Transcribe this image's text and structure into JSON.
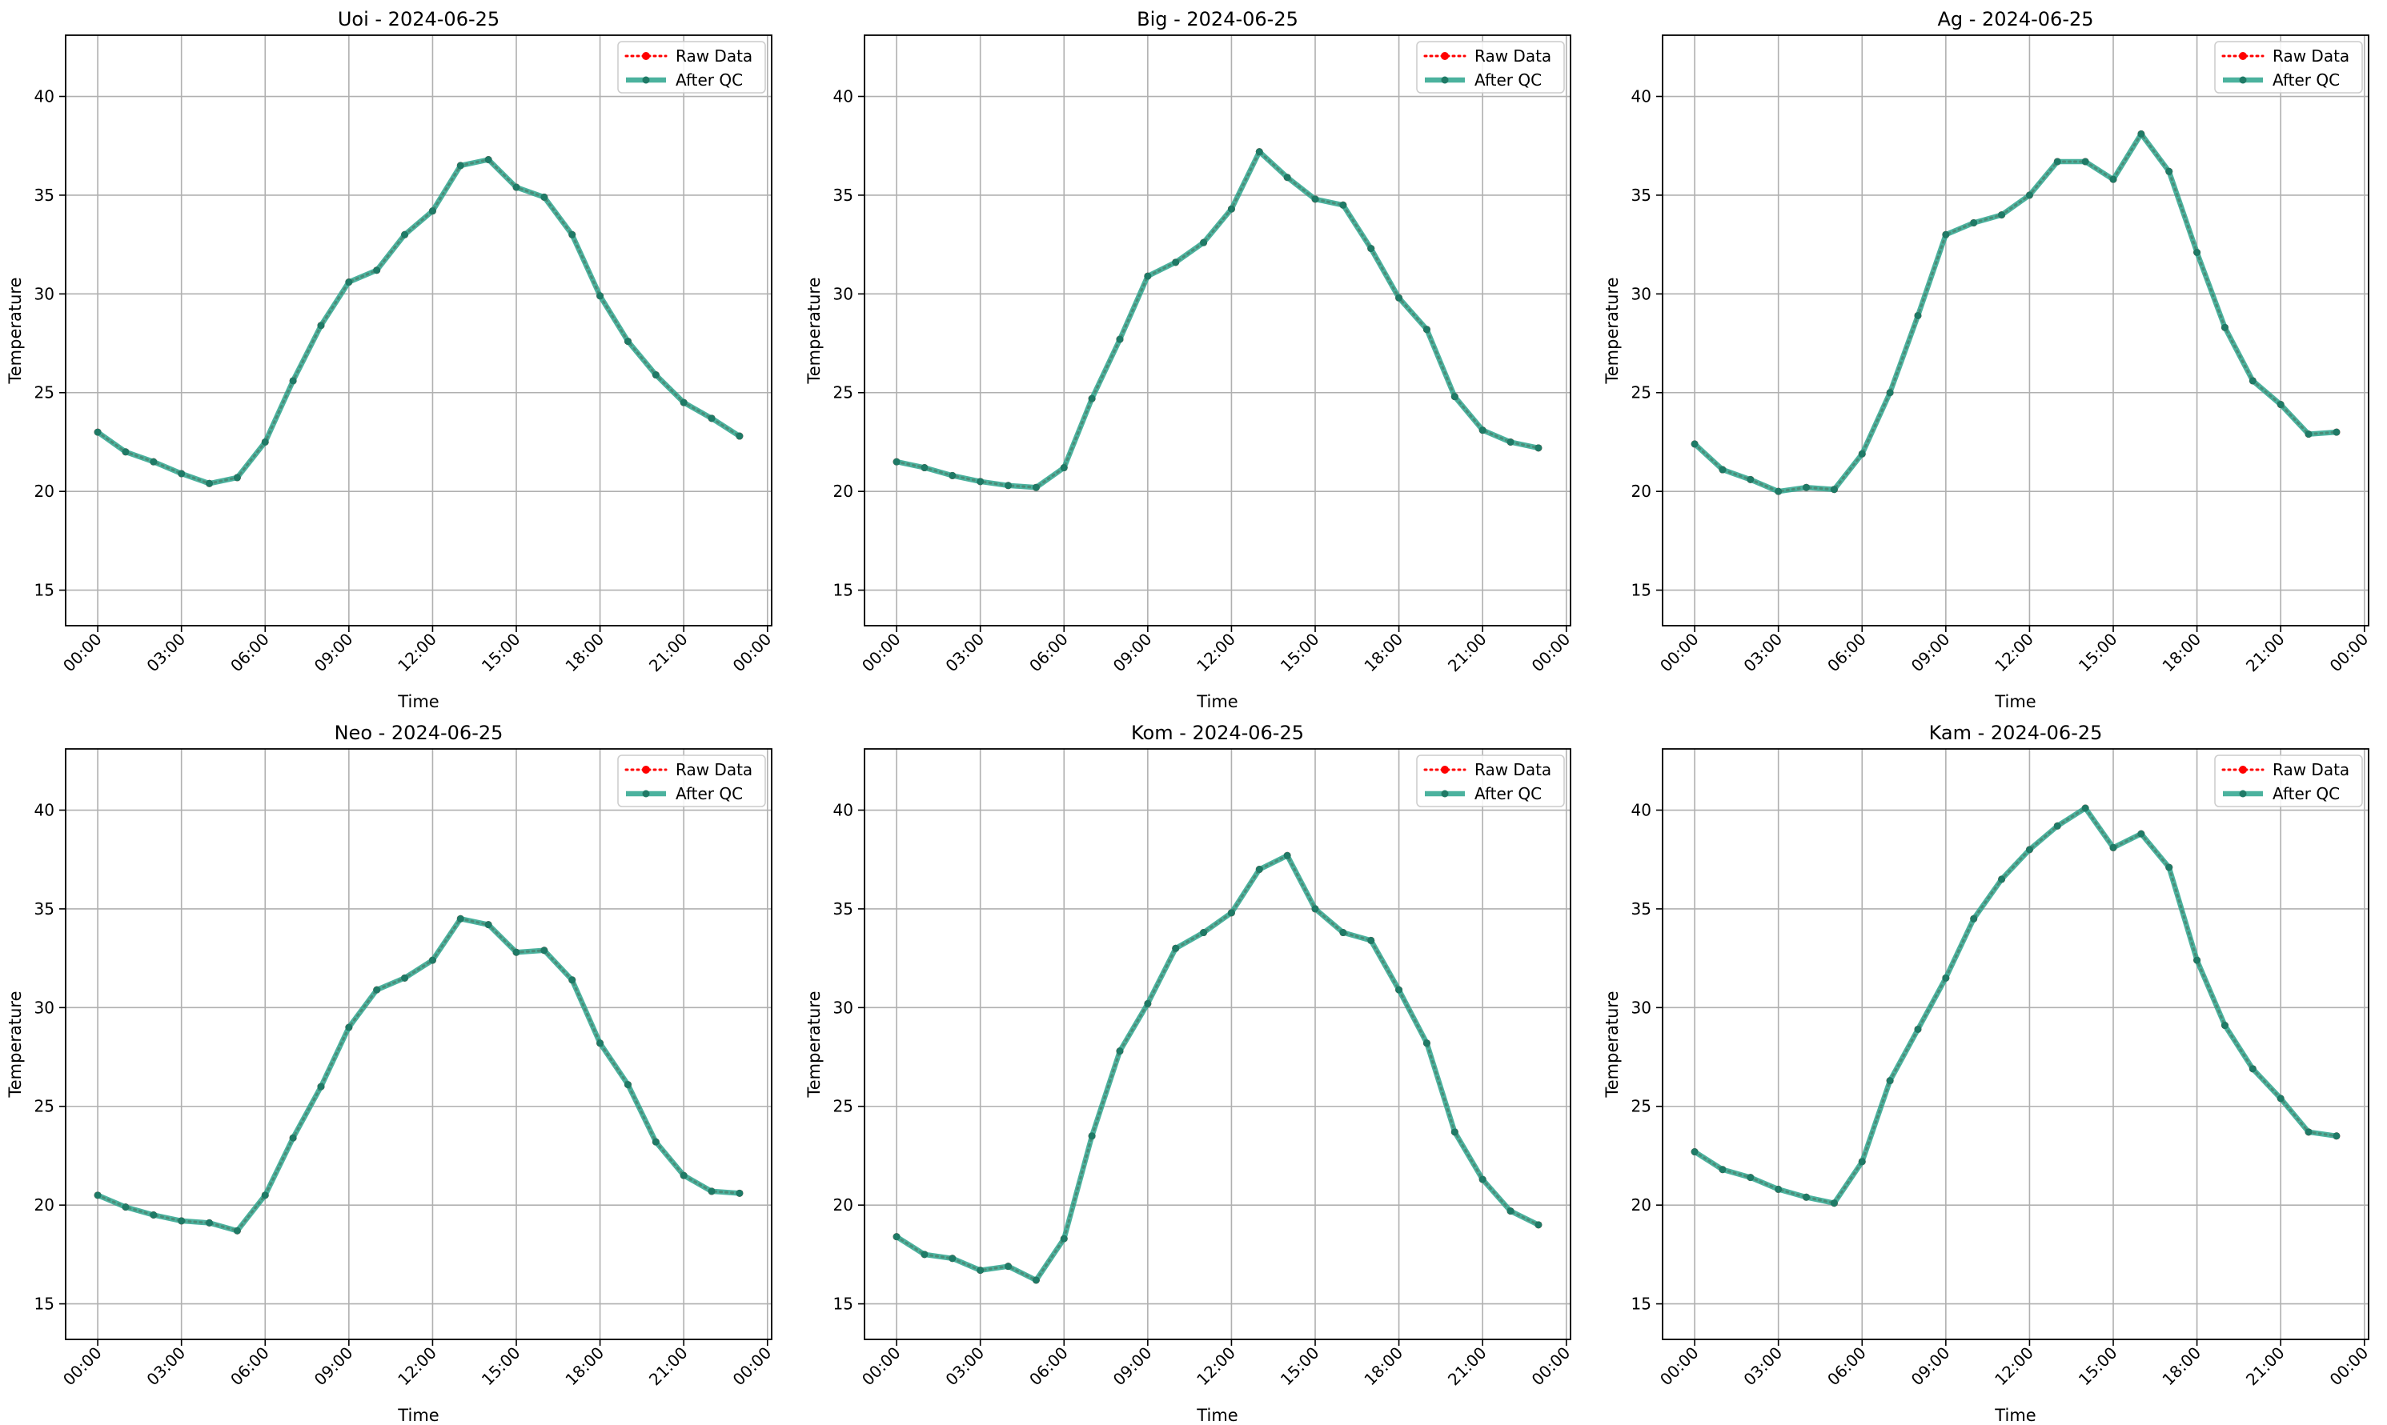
{
  "figure": {
    "colors": {
      "raw": "#ff0000",
      "qc": "#2ca58d",
      "qc_marker": "#1f7a66",
      "grid": "#b0b0b0",
      "axis": "#000000"
    }
  },
  "chart_data": [
    {
      "type": "line",
      "title": "Uoi - 2024-06-25",
      "xlabel": "Time",
      "ylabel": "Temperature",
      "x": [
        "00:00",
        "01:00",
        "02:00",
        "03:00",
        "04:00",
        "05:00",
        "06:00",
        "07:00",
        "08:00",
        "09:00",
        "10:00",
        "11:00",
        "12:00",
        "13:00",
        "14:00",
        "15:00",
        "16:00",
        "17:00",
        "18:00",
        "19:00",
        "20:00",
        "21:00",
        "22:00",
        "23:00"
      ],
      "xticks": [
        "00:00",
        "03:00",
        "06:00",
        "09:00",
        "12:00",
        "15:00",
        "18:00",
        "21:00",
        "00:00"
      ],
      "yticks": [
        15,
        20,
        25,
        30,
        35,
        40
      ],
      "ylim": [
        13.2,
        43.1
      ],
      "grid": true,
      "legend_position": "upper right",
      "series": [
        {
          "name": "Raw Data",
          "style": "dotted",
          "values": [
            23.0,
            22.0,
            21.5,
            20.9,
            20.4,
            20.7,
            22.5,
            25.6,
            28.4,
            30.6,
            31.2,
            33.0,
            34.2,
            36.5,
            36.8,
            35.4,
            34.9,
            33.0,
            29.9,
            27.6,
            25.9,
            24.5,
            23.7,
            22.8
          ]
        },
        {
          "name": "After QC",
          "style": "solid",
          "values": [
            23.0,
            22.0,
            21.5,
            20.9,
            20.4,
            20.7,
            22.5,
            25.6,
            28.4,
            30.6,
            31.2,
            33.0,
            34.2,
            36.5,
            36.8,
            35.4,
            34.9,
            33.0,
            29.9,
            27.6,
            25.9,
            24.5,
            23.7,
            22.8
          ]
        }
      ]
    },
    {
      "type": "line",
      "title": "Big - 2024-06-25",
      "xlabel": "Time",
      "ylabel": "Temperature",
      "x": [
        "00:00",
        "01:00",
        "02:00",
        "03:00",
        "04:00",
        "05:00",
        "06:00",
        "07:00",
        "08:00",
        "09:00",
        "10:00",
        "11:00",
        "12:00",
        "13:00",
        "14:00",
        "15:00",
        "16:00",
        "17:00",
        "18:00",
        "19:00",
        "20:00",
        "21:00",
        "22:00",
        "23:00"
      ],
      "xticks": [
        "00:00",
        "03:00",
        "06:00",
        "09:00",
        "12:00",
        "15:00",
        "18:00",
        "21:00",
        "00:00"
      ],
      "yticks": [
        15,
        20,
        25,
        30,
        35,
        40
      ],
      "ylim": [
        13.2,
        43.1
      ],
      "grid": true,
      "legend_position": "upper right",
      "series": [
        {
          "name": "Raw Data",
          "style": "dotted",
          "values": [
            21.5,
            21.2,
            20.8,
            20.5,
            20.3,
            20.2,
            21.2,
            24.7,
            27.7,
            30.9,
            31.6,
            32.6,
            34.3,
            37.2,
            35.9,
            34.8,
            34.5,
            32.3,
            29.8,
            28.2,
            24.8,
            23.1,
            22.5,
            22.2
          ]
        },
        {
          "name": "After QC",
          "style": "solid",
          "values": [
            21.5,
            21.2,
            20.8,
            20.5,
            20.3,
            20.2,
            21.2,
            24.7,
            27.7,
            30.9,
            31.6,
            32.6,
            34.3,
            37.2,
            35.9,
            34.8,
            34.5,
            32.3,
            29.8,
            28.2,
            24.8,
            23.1,
            22.5,
            22.2
          ]
        }
      ]
    },
    {
      "type": "line",
      "title": "Ag - 2024-06-25",
      "xlabel": "Time",
      "ylabel": "Temperature",
      "x": [
        "00:00",
        "01:00",
        "02:00",
        "03:00",
        "04:00",
        "05:00",
        "06:00",
        "07:00",
        "08:00",
        "09:00",
        "10:00",
        "11:00",
        "12:00",
        "13:00",
        "14:00",
        "15:00",
        "16:00",
        "17:00",
        "18:00",
        "19:00",
        "20:00",
        "21:00",
        "22:00",
        "23:00"
      ],
      "xticks": [
        "00:00",
        "03:00",
        "06:00",
        "09:00",
        "12:00",
        "15:00",
        "18:00",
        "21:00",
        "00:00"
      ],
      "yticks": [
        15,
        20,
        25,
        30,
        35,
        40
      ],
      "ylim": [
        13.2,
        43.1
      ],
      "grid": true,
      "legend_position": "upper right",
      "series": [
        {
          "name": "Raw Data",
          "style": "dotted",
          "values": [
            22.4,
            21.1,
            20.6,
            20.0,
            20.2,
            20.1,
            21.9,
            25.0,
            28.9,
            33.0,
            33.6,
            34.0,
            35.0,
            36.7,
            36.7,
            35.8,
            38.1,
            36.2,
            32.1,
            28.3,
            25.6,
            24.4,
            22.9,
            23.0
          ]
        },
        {
          "name": "After QC",
          "style": "solid",
          "values": [
            22.4,
            21.1,
            20.6,
            20.0,
            20.2,
            20.1,
            21.9,
            25.0,
            28.9,
            33.0,
            33.6,
            34.0,
            35.0,
            36.7,
            36.7,
            35.8,
            38.1,
            36.2,
            32.1,
            28.3,
            25.6,
            24.4,
            22.9,
            23.0
          ]
        }
      ]
    },
    {
      "type": "line",
      "title": "Neo - 2024-06-25",
      "xlabel": "Time",
      "ylabel": "Temperature",
      "x": [
        "00:00",
        "01:00",
        "02:00",
        "03:00",
        "04:00",
        "05:00",
        "06:00",
        "07:00",
        "08:00",
        "09:00",
        "10:00",
        "11:00",
        "12:00",
        "13:00",
        "14:00",
        "15:00",
        "16:00",
        "17:00",
        "18:00",
        "19:00",
        "20:00",
        "21:00",
        "22:00",
        "23:00"
      ],
      "xticks": [
        "00:00",
        "03:00",
        "06:00",
        "09:00",
        "12:00",
        "15:00",
        "18:00",
        "21:00",
        "00:00"
      ],
      "yticks": [
        15,
        20,
        25,
        30,
        35,
        40
      ],
      "ylim": [
        13.2,
        43.1
      ],
      "grid": true,
      "legend_position": "upper right",
      "series": [
        {
          "name": "Raw Data",
          "style": "dotted",
          "values": [
            20.5,
            19.9,
            19.5,
            19.2,
            19.1,
            18.7,
            20.5,
            23.4,
            26.0,
            29.0,
            30.9,
            31.5,
            32.4,
            34.5,
            34.2,
            32.8,
            32.9,
            31.4,
            28.2,
            26.1,
            23.2,
            21.5,
            20.7,
            20.6
          ]
        },
        {
          "name": "After QC",
          "style": "solid",
          "values": [
            20.5,
            19.9,
            19.5,
            19.2,
            19.1,
            18.7,
            20.5,
            23.4,
            26.0,
            29.0,
            30.9,
            31.5,
            32.4,
            34.5,
            34.2,
            32.8,
            32.9,
            31.4,
            28.2,
            26.1,
            23.2,
            21.5,
            20.7,
            20.6
          ]
        }
      ]
    },
    {
      "type": "line",
      "title": "Kom - 2024-06-25",
      "xlabel": "Time",
      "ylabel": "Temperature",
      "x": [
        "00:00",
        "01:00",
        "02:00",
        "03:00",
        "04:00",
        "05:00",
        "06:00",
        "07:00",
        "08:00",
        "09:00",
        "10:00",
        "11:00",
        "12:00",
        "13:00",
        "14:00",
        "15:00",
        "16:00",
        "17:00",
        "18:00",
        "19:00",
        "20:00",
        "21:00",
        "22:00",
        "23:00"
      ],
      "xticks": [
        "00:00",
        "03:00",
        "06:00",
        "09:00",
        "12:00",
        "15:00",
        "18:00",
        "21:00",
        "00:00"
      ],
      "yticks": [
        15,
        20,
        25,
        30,
        35,
        40
      ],
      "ylim": [
        13.2,
        43.1
      ],
      "grid": true,
      "legend_position": "upper right",
      "series": [
        {
          "name": "Raw Data",
          "style": "dotted",
          "values": [
            18.4,
            17.5,
            17.3,
            16.7,
            16.9,
            16.2,
            18.3,
            23.5,
            27.8,
            30.2,
            33.0,
            33.8,
            34.8,
            37.0,
            37.7,
            35.0,
            33.8,
            33.4,
            30.9,
            28.2,
            23.7,
            21.3,
            19.7,
            19.0
          ]
        },
        {
          "name": "After QC",
          "style": "solid",
          "values": [
            18.4,
            17.5,
            17.3,
            16.7,
            16.9,
            16.2,
            18.3,
            23.5,
            27.8,
            30.2,
            33.0,
            33.8,
            34.8,
            37.0,
            37.7,
            35.0,
            33.8,
            33.4,
            30.9,
            28.2,
            23.7,
            21.3,
            19.7,
            19.0
          ]
        }
      ]
    },
    {
      "type": "line",
      "title": "Kam - 2024-06-25",
      "xlabel": "Time",
      "ylabel": "Temperature",
      "x": [
        "00:00",
        "01:00",
        "02:00",
        "03:00",
        "04:00",
        "05:00",
        "06:00",
        "07:00",
        "08:00",
        "09:00",
        "10:00",
        "11:00",
        "12:00",
        "13:00",
        "14:00",
        "15:00",
        "16:00",
        "17:00",
        "18:00",
        "19:00",
        "20:00",
        "21:00",
        "22:00",
        "23:00"
      ],
      "xticks": [
        "00:00",
        "03:00",
        "06:00",
        "09:00",
        "12:00",
        "15:00",
        "18:00",
        "21:00",
        "00:00"
      ],
      "yticks": [
        15,
        20,
        25,
        30,
        35,
        40
      ],
      "ylim": [
        13.2,
        43.1
      ],
      "grid": true,
      "legend_position": "upper right",
      "series": [
        {
          "name": "Raw Data",
          "style": "dotted",
          "values": [
            22.7,
            21.8,
            21.4,
            20.8,
            20.4,
            20.1,
            22.2,
            26.3,
            28.9,
            31.5,
            34.5,
            36.5,
            38.0,
            39.2,
            40.1,
            38.1,
            38.8,
            37.1,
            32.4,
            29.1,
            26.9,
            25.4,
            23.7,
            23.5
          ]
        },
        {
          "name": "After QC",
          "style": "solid",
          "values": [
            22.7,
            21.8,
            21.4,
            20.8,
            20.4,
            20.1,
            22.2,
            26.3,
            28.9,
            31.5,
            34.5,
            36.5,
            38.0,
            39.2,
            40.1,
            38.1,
            38.8,
            37.1,
            32.4,
            29.1,
            26.9,
            25.4,
            23.7,
            23.5
          ]
        }
      ]
    }
  ]
}
